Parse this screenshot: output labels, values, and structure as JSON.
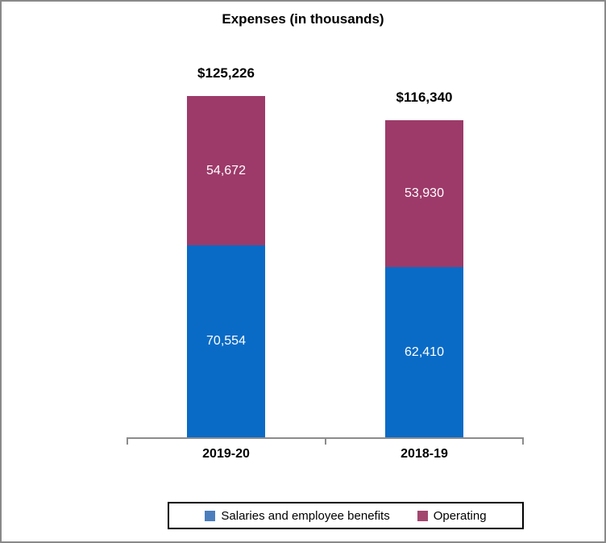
{
  "title": "Expenses (in thousands)",
  "colors": {
    "salaries": "#0A6BC6",
    "operating": "#9D3A69",
    "legend_salaries": "#4C7EBD",
    "legend_operating": "#A3476F",
    "axis": "#8C8C8C",
    "frame": "#898989",
    "legend_border": "#000000",
    "label_on_bar": "#FFFFFF",
    "text": "#000000"
  },
  "chart_data": {
    "type": "bar",
    "stacked": true,
    "title": "Expenses (in thousands)",
    "categories": [
      "2019-20",
      "2018-19"
    ],
    "series": [
      {
        "name": "Salaries and employee benefits",
        "values": [
          70554,
          62410
        ],
        "labels": [
          "70,554",
          "62,410"
        ],
        "color": "#0A6BC6"
      },
      {
        "name": "Operating",
        "values": [
          54672,
          53930
        ],
        "labels": [
          "54,672",
          "53,930"
        ],
        "color": "#9D3A69"
      }
    ],
    "totals": [
      125226,
      116340
    ],
    "total_labels": [
      "$125,226",
      "$116,340"
    ],
    "xlabel": "",
    "ylabel": "",
    "ylim": [
      0,
      125226
    ],
    "grid": false,
    "y_axis_visible": false,
    "legend_position": "bottom"
  },
  "legend": {
    "items": [
      {
        "label": "Salaries and employee benefits"
      },
      {
        "label": "Operating"
      }
    ]
  }
}
